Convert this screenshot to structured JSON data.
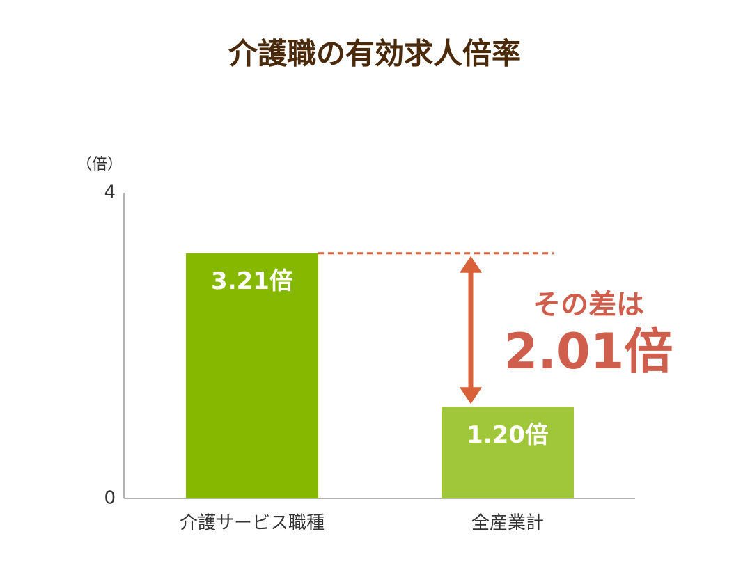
{
  "chart_data": {
    "type": "bar",
    "title": "介護職の有効求人倍率",
    "y_label": "（倍）",
    "categories": [
      "介護サービス職種",
      "全産業計"
    ],
    "values": [
      3.21,
      1.2
    ],
    "value_labels": [
      "3.21倍",
      "1.20倍"
    ],
    "colors": [
      "#86b800",
      "#a0c73a"
    ],
    "ylim": [
      0,
      4
    ],
    "yticks": [
      0,
      4
    ],
    "grid": false,
    "annotation": {
      "lead": "その差は",
      "text": "2.01倍",
      "color": "#d9613a",
      "text_color": "#cf5f4c"
    }
  }
}
